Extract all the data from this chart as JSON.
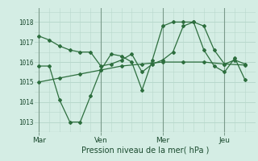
{
  "bg_color": "#d4ede4",
  "grid_color": "#b8d8cc",
  "line_color": "#2d6e3e",
  "xlabel": "Pression niveau de la mer( hPa )",
  "ylim": [
    1012.5,
    1018.7
  ],
  "yticks": [
    1013,
    1014,
    1015,
    1016,
    1017,
    1018
  ],
  "day_labels": [
    "Mar",
    "Ven",
    "Mer",
    "Jeu"
  ],
  "day_positions": [
    0,
    3,
    6,
    9
  ],
  "vline_positions": [
    0,
    3,
    6,
    9
  ],
  "xlim": [
    -0.2,
    10.5
  ],
  "series": [
    {
      "x": [
        0,
        0.5,
        1,
        1.5,
        2,
        2.5,
        3,
        3.5,
        4,
        4.5,
        5,
        5.5,
        6,
        6.5,
        7,
        7.5,
        8,
        8.5,
        9,
        9.5,
        10
      ],
      "y": [
        1017.3,
        1017.1,
        1016.8,
        1016.6,
        1016.5,
        1016.5,
        1015.8,
        1015.9,
        1016.1,
        1016.4,
        1015.5,
        1015.9,
        1016.1,
        1016.5,
        1017.8,
        1018.0,
        1017.8,
        1016.6,
        1015.9,
        1016.1,
        1015.9
      ]
    },
    {
      "x": [
        0,
        0.5,
        1,
        1.5,
        2,
        2.5,
        3,
        3.5,
        4,
        4.5,
        5,
        5.5,
        6,
        6.5,
        7,
        7.5,
        8,
        8.5,
        9,
        9.5,
        10
      ],
      "y": [
        1015.8,
        1015.8,
        1014.1,
        1013.0,
        1013.0,
        1014.3,
        1015.6,
        1016.4,
        1016.3,
        1016.0,
        1014.6,
        1016.1,
        1017.8,
        1018.0,
        1018.0,
        1018.0,
        1016.6,
        1015.8,
        1015.5,
        1016.2,
        1015.1
      ]
    },
    {
      "x": [
        0,
        1,
        2,
        3,
        4,
        5,
        6,
        7,
        8,
        9,
        10
      ],
      "y": [
        1015.0,
        1015.2,
        1015.4,
        1015.6,
        1015.8,
        1015.9,
        1016.0,
        1016.0,
        1016.0,
        1015.9,
        1015.85
      ]
    }
  ]
}
